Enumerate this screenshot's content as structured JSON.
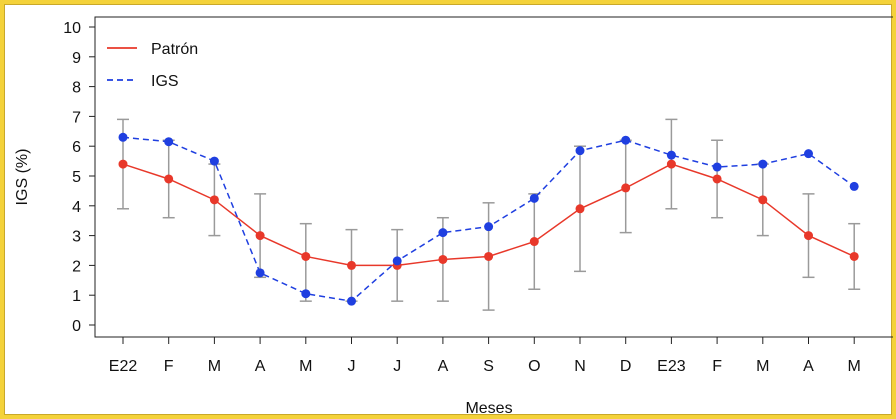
{
  "chart_data": {
    "type": "line",
    "categories": [
      "E22",
      "F",
      "M",
      "A",
      "M",
      "J",
      "J",
      "A",
      "S",
      "O",
      "N",
      "D",
      "E23",
      "F",
      "M",
      "A",
      "M"
    ],
    "xlabel": "Meses",
    "ylabel": "IGS (%)",
    "ylim": [
      0,
      10
    ],
    "yticks": [
      0,
      1,
      2,
      3,
      4,
      5,
      6,
      7,
      8,
      9,
      10
    ],
    "grid": false,
    "legend_position": "top-left",
    "series": [
      {
        "name": "Patrón",
        "color": "#e8382a",
        "line_style": "solid",
        "values": [
          5.4,
          4.9,
          4.2,
          3.0,
          2.3,
          2.0,
          2.0,
          2.2,
          2.3,
          2.8,
          3.9,
          4.6,
          5.4,
          4.9,
          4.2,
          3.0,
          2.3
        ],
        "error_low": [
          3.9,
          3.6,
          3.0,
          1.6,
          0.8,
          0.8,
          0.8,
          0.8,
          0.5,
          1.2,
          1.8,
          3.1,
          3.9,
          3.6,
          3.0,
          1.6,
          1.2
        ],
        "error_high": [
          6.9,
          6.2,
          5.4,
          4.4,
          3.4,
          3.2,
          3.2,
          3.6,
          4.1,
          4.4,
          6.0,
          6.2,
          6.9,
          6.2,
          5.4,
          4.4,
          3.4
        ]
      },
      {
        "name": "IGS",
        "color": "#1f3fe0",
        "line_style": "dashed",
        "values": [
          6.3,
          6.15,
          5.5,
          1.75,
          1.05,
          0.8,
          2.15,
          3.1,
          3.3,
          4.25,
          5.85,
          6.2,
          5.7,
          5.3,
          5.4,
          5.75,
          4.65
        ]
      }
    ],
    "error_bar_color": "#9a9a9a"
  }
}
